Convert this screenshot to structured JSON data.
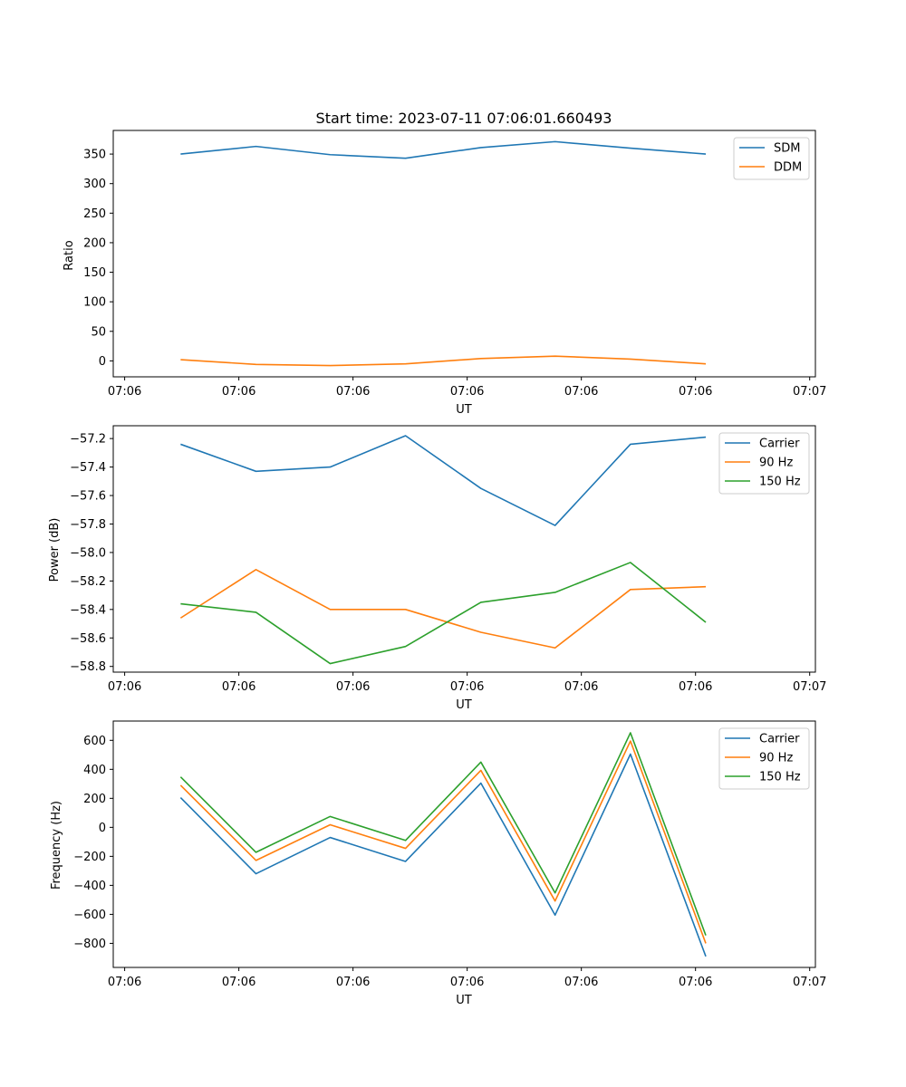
{
  "chart_data": [
    {
      "type": "line",
      "title": "Start time: 2023-07-11 07:06:01.660493",
      "xlabel": "UT",
      "ylabel": "Ratio",
      "xticks": [
        "07:06",
        "07:06",
        "07:06",
        "07:06",
        "07:06",
        "07:06",
        "07:07"
      ],
      "xtick_values": [
        0,
        1,
        2,
        3,
        4,
        5,
        6
      ],
      "xlim": [
        -0.1,
        6.05
      ],
      "x": [
        0.49,
        1.15,
        1.8,
        2.46,
        3.12,
        3.77,
        4.43,
        5.09
      ],
      "ylim": [
        -27,
        390
      ],
      "yticks": [
        0,
        50,
        100,
        150,
        200,
        250,
        300,
        350
      ],
      "legend": "top-right",
      "series": [
        {
          "name": "SDM",
          "color": "#1f77b4",
          "values": [
            350,
            363,
            349,
            343,
            361,
            371,
            360,
            350
          ]
        },
        {
          "name": "DDM",
          "color": "#ff7f0e",
          "values": [
            2,
            -6,
            -8,
            -5,
            4,
            8,
            3,
            -5
          ]
        }
      ]
    },
    {
      "type": "line",
      "title": "",
      "xlabel": "UT",
      "ylabel": "Power (dB)",
      "xticks": [
        "07:06",
        "07:06",
        "07:06",
        "07:06",
        "07:06",
        "07:06",
        "07:07"
      ],
      "xtick_values": [
        0,
        1,
        2,
        3,
        4,
        5,
        6
      ],
      "xlim": [
        -0.1,
        6.05
      ],
      "x": [
        0.49,
        1.15,
        1.8,
        2.46,
        3.12,
        3.77,
        4.43,
        5.09
      ],
      "ylim": [
        -58.84,
        -57.11
      ],
      "yticks": [
        -58.8,
        -58.6,
        -58.4,
        -58.2,
        -58.0,
        -57.8,
        -57.6,
        -57.4,
        -57.2
      ],
      "ytick_labels": [
        "−58.8",
        "−58.6",
        "−58.4",
        "−58.2",
        "−58.0",
        "−57.8",
        "−57.6",
        "−57.4",
        "−57.2"
      ],
      "legend": "top-right",
      "series": [
        {
          "name": "Carrier",
          "color": "#1f77b4",
          "values": [
            -57.24,
            -57.43,
            -57.4,
            -57.18,
            -57.55,
            -57.81,
            -57.24,
            -57.19
          ]
        },
        {
          "name": "90 Hz",
          "color": "#ff7f0e",
          "values": [
            -58.46,
            -58.12,
            -58.4,
            -58.4,
            -58.56,
            -58.67,
            -58.26,
            -58.24
          ]
        },
        {
          "name": "150 Hz",
          "color": "#2ca02c",
          "values": [
            -58.36,
            -58.42,
            -58.78,
            -58.66,
            -58.35,
            -58.28,
            -58.07,
            -58.49
          ]
        }
      ]
    },
    {
      "type": "line",
      "title": "",
      "xlabel": "UT",
      "ylabel": "Frequency (Hz)",
      "xticks": [
        "07:06",
        "07:06",
        "07:06",
        "07:06",
        "07:06",
        "07:06",
        "07:07"
      ],
      "xtick_values": [
        0,
        1,
        2,
        3,
        4,
        5,
        6
      ],
      "xlim": [
        -0.1,
        6.05
      ],
      "x": [
        0.49,
        1.15,
        1.8,
        2.46,
        3.12,
        3.77,
        4.43,
        5.09
      ],
      "ylim": [
        -966,
        733
      ],
      "yticks": [
        -800,
        -600,
        -400,
        -200,
        0,
        200,
        400,
        600
      ],
      "ytick_labels": [
        "−800",
        "−600",
        "−400",
        "−200",
        "0",
        "200",
        "400",
        "600"
      ],
      "legend": "top-right",
      "series": [
        {
          "name": "Carrier",
          "color": "#1f77b4",
          "values": [
            205,
            -320,
            -70,
            -235,
            305,
            -605,
            505,
            -890
          ]
        },
        {
          "name": "90 Hz",
          "color": "#ff7f0e",
          "values": [
            290,
            -228,
            18,
            -145,
            393,
            -508,
            595,
            -800
          ]
        },
        {
          "name": "150 Hz",
          "color": "#2ca02c",
          "values": [
            348,
            -172,
            75,
            -90,
            450,
            -452,
            652,
            -745
          ]
        }
      ]
    }
  ]
}
